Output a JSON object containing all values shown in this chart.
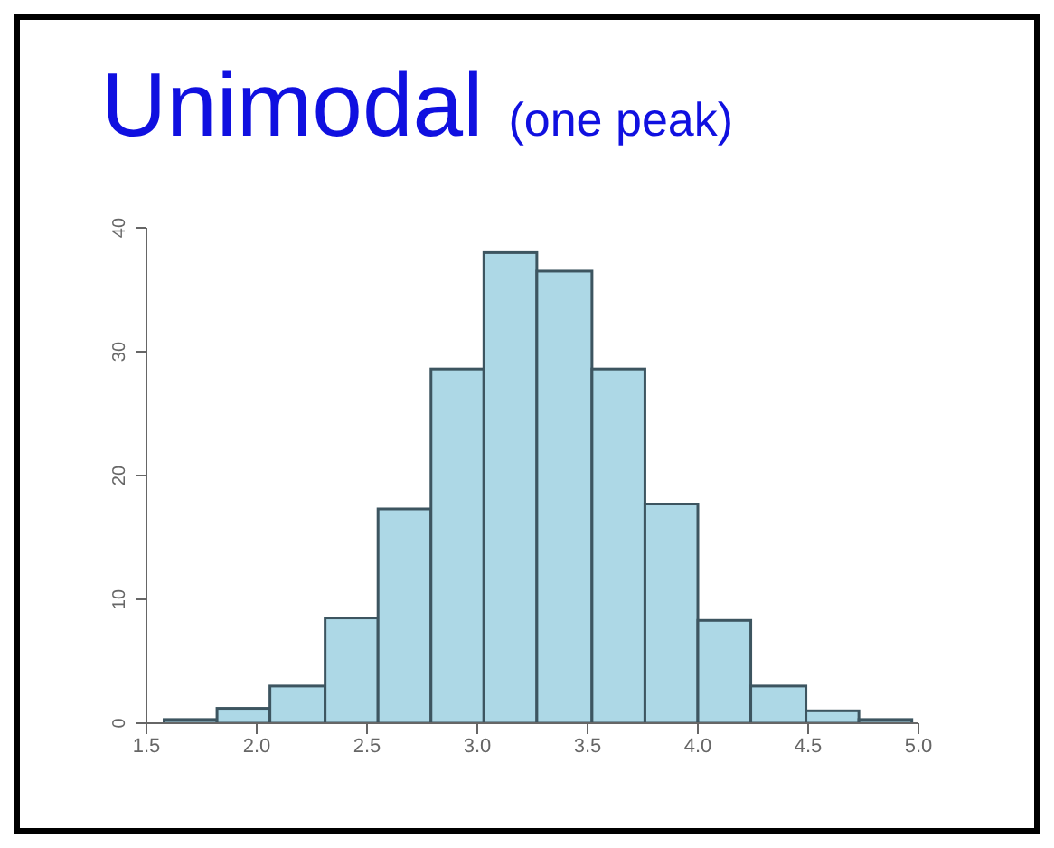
{
  "chart_data": {
    "type": "histogram",
    "title": "Unimodal",
    "subtitle": "(one peak)",
    "bins": [
      1.58,
      1.82,
      2.06,
      2.31,
      2.55,
      2.79,
      3.03,
      3.27,
      3.52,
      3.76,
      4.0,
      4.24,
      4.49,
      4.73,
      4.97
    ],
    "values": [
      0.3,
      1.2,
      3,
      8.5,
      17.3,
      28.6,
      38,
      36.5,
      28.6,
      17.7,
      8.3,
      3,
      1,
      0.3
    ],
    "color": "#add8e6",
    "xlim": [
      1.5,
      5.0
    ],
    "xticks": [
      1.5,
      {
        "value": 2,
        "label": "2.0"
      },
      2.5,
      {
        "value": 3,
        "label": "3.0"
      },
      3.5,
      {
        "value": 4,
        "label": "4.0"
      },
      4.5,
      {
        "value": 5,
        "label": "5.0"
      }
    ],
    "ylim": [
      0,
      40
    ],
    "yticks": [
      0,
      10,
      20,
      30,
      40
    ],
    "grid": false
  }
}
